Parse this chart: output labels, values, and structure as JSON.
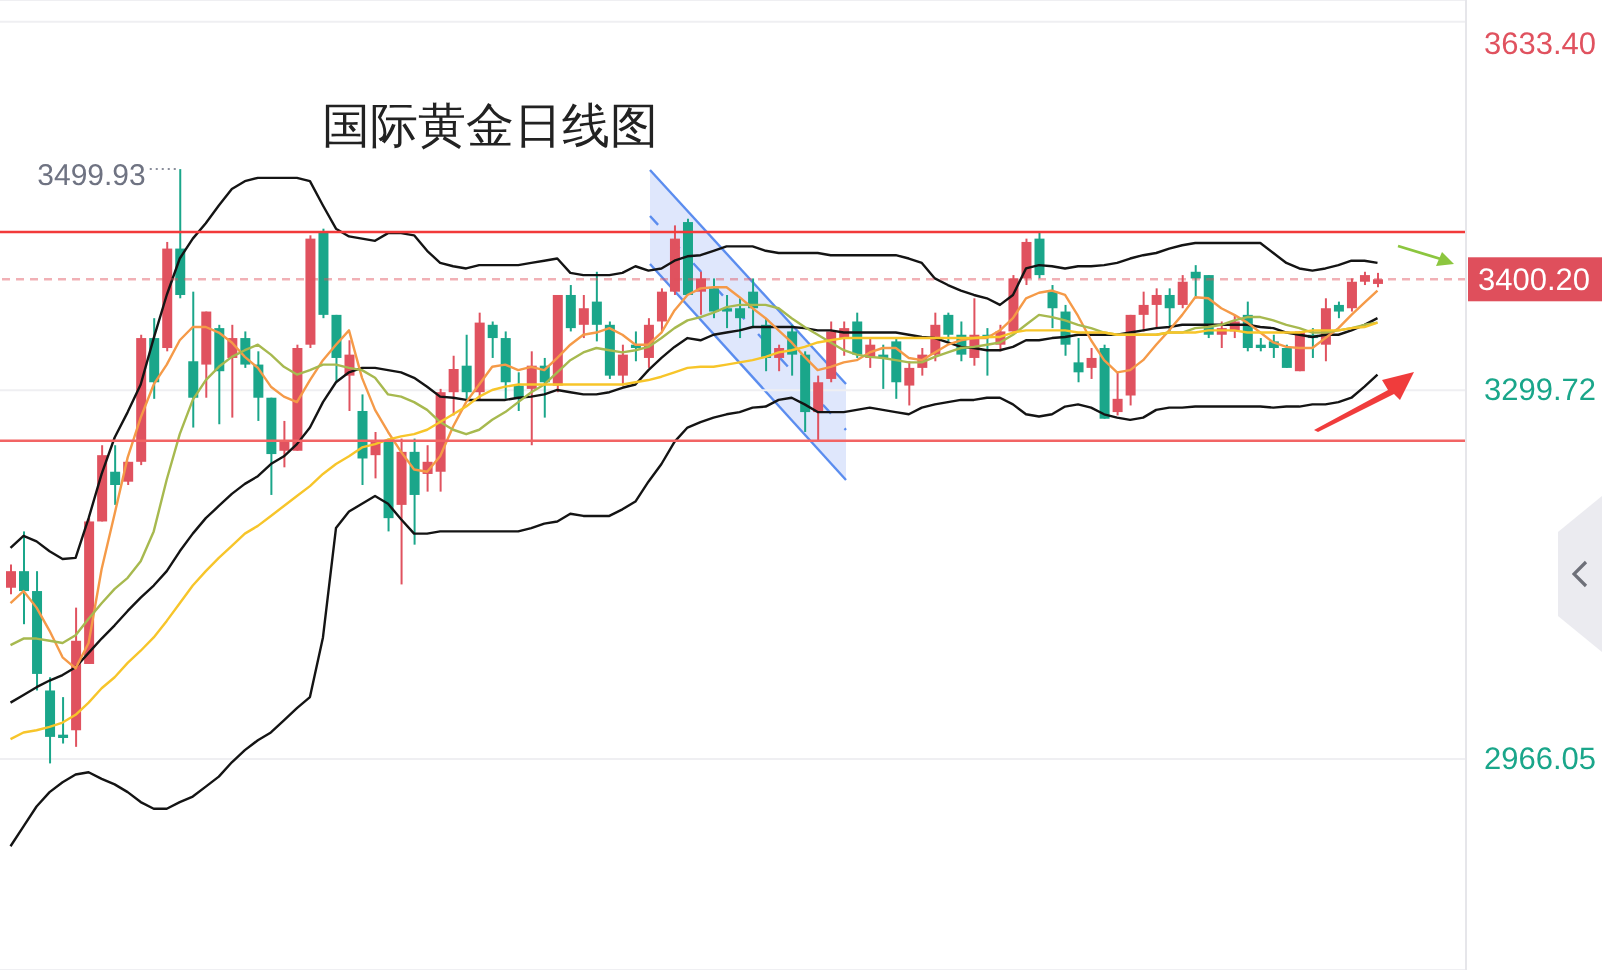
{
  "chart_data": {
    "type": "candlestick",
    "title": "国际黄金日线图",
    "categories": [
      null,
      null,
      null,
      null,
      null,
      null,
      null,
      null,
      null,
      null,
      null,
      null,
      null,
      null,
      null,
      null,
      null,
      null,
      null,
      null,
      null,
      null,
      null,
      null,
      null,
      null,
      null,
      null,
      null,
      null,
      null,
      null,
      null,
      null,
      null,
      null,
      null,
      null,
      null,
      null,
      null,
      null,
      null,
      null,
      null,
      null,
      null,
      null,
      null,
      null,
      null,
      null,
      null,
      null,
      null,
      null,
      null,
      null,
      null,
      null,
      null,
      null,
      null,
      null,
      null,
      null,
      null,
      null,
      null,
      null,
      null,
      null,
      null,
      null,
      null,
      null,
      null,
      null,
      null,
      null,
      null,
      null,
      null,
      null,
      null,
      null,
      null,
      null,
      null,
      null,
      null,
      null,
      null,
      null,
      null,
      null,
      null,
      null,
      null,
      null,
      null,
      null,
      null,
      null,
      null,
      null
    ],
    "ohlc": [
      [
        3121,
        3142,
        3115,
        3136
      ],
      [
        3136,
        3172,
        3088,
        3118
      ],
      [
        3118,
        3136,
        3028,
        3043
      ],
      [
        3028,
        3040,
        2962,
        2986
      ],
      [
        2988,
        3022,
        2980,
        2985
      ],
      [
        2992,
        3103,
        2977,
        3073
      ],
      [
        3052,
        3184,
        3052,
        3181
      ],
      [
        3181,
        3250,
        3181,
        3241
      ],
      [
        3226,
        3250,
        3196,
        3214
      ],
      [
        3217,
        3235,
        3214,
        3235
      ],
      [
        3235,
        3350,
        3232,
        3347
      ],
      [
        3347,
        3365,
        3292,
        3307
      ],
      [
        3338,
        3434,
        3335,
        3428
      ],
      [
        3428,
        3499.93,
        3383,
        3386
      ],
      [
        3326,
        3389,
        3266,
        3293
      ],
      [
        3323,
        3371,
        3293,
        3371
      ],
      [
        3356,
        3359,
        3269,
        3317
      ],
      [
        3329,
        3359,
        3275,
        3347
      ],
      [
        3347,
        3353,
        3320,
        3323
      ],
      [
        3323,
        3335,
        3272,
        3293
      ],
      [
        3293,
        3293,
        3205,
        3242
      ],
      [
        3245,
        3272,
        3230,
        3254
      ],
      [
        3245,
        3341,
        3245,
        3338
      ],
      [
        3341,
        3440,
        3338,
        3437
      ],
      [
        3443,
        3446,
        3365,
        3368
      ],
      [
        3368,
        3368,
        3307,
        3329
      ],
      [
        3313,
        3345,
        3281,
        3332
      ],
      [
        3281,
        3296,
        3214,
        3238
      ],
      [
        3241,
        3262,
        3220,
        3253
      ],
      [
        3253,
        3256,
        3172,
        3184
      ],
      [
        3196,
        3256,
        3124,
        3244
      ],
      [
        3244,
        3256,
        3160,
        3205
      ],
      [
        3224,
        3250,
        3208,
        3235
      ],
      [
        3226,
        3301,
        3208,
        3298
      ],
      [
        3298,
        3331,
        3277,
        3319
      ],
      [
        3322,
        3350,
        3292,
        3298
      ],
      [
        3298,
        3370,
        3292,
        3361
      ],
      [
        3359,
        3362,
        3329,
        3347
      ],
      [
        3347,
        3353,
        3292,
        3307
      ],
      [
        3304,
        3316,
        3281,
        3292
      ],
      [
        3301,
        3335,
        3250,
        3322
      ],
      [
        3322,
        3329,
        3275,
        3307
      ],
      [
        3304,
        3386,
        3298,
        3386
      ],
      [
        3386,
        3395,
        3353,
        3356
      ],
      [
        3359,
        3386,
        3347,
        3374
      ],
      [
        3380,
        3407,
        3344,
        3359
      ],
      [
        3359,
        3362,
        3310,
        3313
      ],
      [
        3313,
        3341,
        3304,
        3332
      ],
      [
        3341,
        3353,
        3326,
        3338
      ],
      [
        3329,
        3365,
        3320,
        3359
      ],
      [
        3362,
        3392,
        3353,
        3389
      ],
      [
        3389,
        3449,
        3386,
        3437
      ],
      [
        3452,
        3455,
        3386,
        3386
      ],
      [
        3389,
        3407,
        3368,
        3401
      ],
      [
        3392,
        3401,
        3365,
        3371
      ],
      [
        3374,
        3386,
        3356,
        3371
      ],
      [
        3374,
        3383,
        3347,
        3365
      ],
      [
        3389,
        3401,
        3356,
        3374
      ],
      [
        3359,
        3365,
        3317,
        3329
      ],
      [
        3329,
        3341,
        3317,
        3338
      ],
      [
        3353,
        3359,
        3313,
        3332
      ],
      [
        3332,
        3335,
        3262,
        3280
      ],
      [
        3280,
        3313,
        3253,
        3307
      ],
      [
        3310,
        3362,
        3307,
        3353
      ],
      [
        3347,
        3362,
        3331,
        3356
      ],
      [
        3362,
        3370,
        3329,
        3332
      ],
      [
        3329,
        3347,
        3320,
        3341
      ],
      [
        3332,
        3341,
        3301,
        3329
      ],
      [
        3344,
        3347,
        3292,
        3307
      ],
      [
        3304,
        3326,
        3286,
        3320
      ],
      [
        3320,
        3338,
        3313,
        3332
      ],
      [
        3332,
        3370,
        3326,
        3359
      ],
      [
        3368,
        3370,
        3344,
        3350
      ],
      [
        3350,
        3362,
        3326,
        3332
      ],
      [
        3329,
        3383,
        3322,
        3350
      ],
      [
        3350,
        3356,
        3313,
        3347
      ],
      [
        3341,
        3359,
        3335,
        3353
      ],
      [
        3353,
        3404,
        3350,
        3401
      ],
      [
        3401,
        3437,
        3395,
        3434
      ],
      [
        3437,
        3443,
        3401,
        3404
      ],
      [
        3389,
        3395,
        3356,
        3374
      ],
      [
        3371,
        3377,
        3331,
        3341
      ],
      [
        3325,
        3347,
        3307,
        3316
      ],
      [
        3320,
        3338,
        3310,
        3329
      ],
      [
        3338,
        3341,
        3274,
        3274
      ],
      [
        3280,
        3316,
        3277,
        3292
      ],
      [
        3295,
        3368,
        3286,
        3368
      ],
      [
        3368,
        3389,
        3353,
        3377
      ],
      [
        3377,
        3392,
        3356,
        3386
      ],
      [
        3386,
        3392,
        3353,
        3374
      ],
      [
        3377,
        3404,
        3374,
        3398
      ],
      [
        3407,
        3413,
        3383,
        3401
      ],
      [
        3404,
        3404,
        3347,
        3350
      ],
      [
        3350,
        3362,
        3338,
        3356
      ],
      [
        3353,
        3368,
        3347,
        3362
      ],
      [
        3368,
        3380,
        3335,
        3338
      ],
      [
        3341,
        3347,
        3335,
        3338
      ],
      [
        3344,
        3350,
        3329,
        3338
      ],
      [
        3338,
        3341,
        3320,
        3320
      ],
      [
        3317,
        3353,
        3317,
        3353
      ],
      [
        3350,
        3356,
        3329,
        3347
      ],
      [
        3341,
        3383,
        3326,
        3374
      ],
      [
        3377,
        3380,
        3365,
        3371
      ],
      [
        3374,
        3401,
        3371,
        3398
      ],
      [
        3398,
        3407,
        3395,
        3404
      ],
      [
        3396,
        3406,
        3393,
        3400.2
      ]
    ],
    "colors": [
      "#e0525f",
      "#1aa68a",
      "#1aa68a",
      "#1aa68a",
      "#1aa68a",
      "#e0525f",
      "#e0525f",
      "#e0525f",
      "#1aa68a",
      "#e0525f",
      "#e0525f",
      "#1aa68a",
      "#e0525f",
      "#1aa68a",
      "#1aa68a",
      "#e0525f",
      "#1aa68a",
      "#e0525f",
      "#1aa68a",
      "#1aa68a",
      "#1aa68a",
      "#e0525f",
      "#e0525f",
      "#e0525f",
      "#1aa68a",
      "#1aa68a",
      "#e0525f",
      "#1aa68a",
      "#e0525f",
      "#1aa68a",
      "#e0525f",
      "#1aa68a",
      "#e0525f",
      "#e0525f",
      "#e0525f",
      "#1aa68a",
      "#e0525f",
      "#1aa68a",
      "#1aa68a",
      "#1aa68a",
      "#e0525f",
      "#1aa68a",
      "#e0525f",
      "#1aa68a",
      "#e0525f",
      "#1aa68a",
      "#1aa68a",
      "#e0525f",
      "#1aa68a",
      "#e0525f",
      "#e0525f",
      "#e0525f",
      "#1aa68a",
      "#e0525f",
      "#1aa68a",
      "#1aa68a",
      "#1aa68a",
      "#1aa68a",
      "#1aa68a",
      "#e0525f",
      "#1aa68a",
      "#1aa68a",
      "#e0525f",
      "#e0525f",
      "#e0525f",
      "#1aa68a",
      "#e0525f",
      "#1aa68a",
      "#1aa68a",
      "#e0525f",
      "#e0525f",
      "#e0525f",
      "#1aa68a",
      "#1aa68a",
      "#e0525f",
      "#1aa68a",
      "#e0525f",
      "#e0525f",
      "#e0525f",
      "#1aa68a",
      "#1aa68a",
      "#1aa68a",
      "#1aa68a",
      "#e0525f",
      "#1aa68a",
      "#e0525f",
      "#e0525f",
      "#e0525f",
      "#e0525f",
      "#1aa68a",
      "#e0525f",
      "#1aa68a",
      "#1aa68a",
      "#e0525f",
      "#e0525f",
      "#1aa68a",
      "#1aa68a",
      "#1aa68a",
      "#1aa68a",
      "#e0525f",
      "#1aa68a",
      "#e0525f",
      "#1aa68a",
      "#e0525f",
      "#e0525f",
      "#e0525f"
    ],
    "series": [
      {
        "type": "line",
        "color": "#141414",
        "values": [
          3157,
          3168,
          3163,
          3154,
          3147,
          3148,
          3184,
          3224,
          3257,
          3280,
          3305,
          3347,
          3386,
          3419,
          3437,
          3451,
          3467,
          3482,
          3489,
          3492,
          3492,
          3492,
          3492,
          3489,
          3467,
          3446,
          3439,
          3437,
          3435,
          3442,
          3442,
          3440,
          3426,
          3415,
          3412,
          3410,
          3413,
          3413,
          3413,
          3413,
          3415,
          3417,
          3419,
          3406,
          3404,
          3404,
          3404,
          3406,
          3412,
          3408,
          3410,
          3417,
          3421,
          3422,
          3426,
          3430,
          3430,
          3430,
          3426,
          3424,
          3424,
          3424,
          3424,
          3422,
          3422,
          3422,
          3422,
          3422,
          3422,
          3419,
          3415,
          3401,
          3395,
          3390,
          3386,
          3383,
          3377,
          3386,
          3410,
          3413,
          3412,
          3410,
          3412,
          3412,
          3413,
          3415,
          3419,
          3422,
          3424,
          3428,
          3431,
          3433,
          3433,
          3433,
          3433,
          3433,
          3433,
          3424,
          3415,
          3410,
          3408,
          3410,
          3413,
          3417,
          3417,
          3415
        ]
      },
      {
        "type": "line",
        "color": "#141414",
        "values": [
          3017,
          3024,
          3031,
          3037,
          3042,
          3049,
          3062,
          3075,
          3087,
          3100,
          3112,
          3123,
          3136,
          3154,
          3170,
          3184,
          3195,
          3206,
          3215,
          3222,
          3233,
          3240,
          3251,
          3266,
          3289,
          3307,
          3316,
          3320,
          3320,
          3318,
          3316,
          3311,
          3303,
          3294,
          3293,
          3291,
          3291,
          3291,
          3291,
          3293,
          3294,
          3296,
          3300,
          3298,
          3296,
          3296,
          3298,
          3302,
          3305,
          3318,
          3329,
          3339,
          3347,
          3345,
          3350,
          3352,
          3354,
          3357,
          3357,
          3357,
          3357,
          3356,
          3354,
          3354,
          3352,
          3352,
          3352,
          3352,
          3352,
          3350,
          3348,
          3347,
          3343,
          3339,
          3338,
          3336,
          3336,
          3339,
          3345,
          3345,
          3347,
          3348,
          3350,
          3350,
          3350,
          3350,
          3352,
          3354,
          3356,
          3357,
          3359,
          3359,
          3359,
          3359,
          3359,
          3359,
          3357,
          3356,
          3352,
          3350,
          3348,
          3350,
          3350,
          3354,
          3359,
          3365
        ]
      },
      {
        "type": "line",
        "color": "#141414",
        "values": [
          2887,
          2905,
          2923,
          2936,
          2945,
          2952,
          2954,
          2948,
          2943,
          2936,
          2927,
          2921,
          2921,
          2927,
          2932,
          2941,
          2950,
          2963,
          2974,
          2983,
          2990,
          3001,
          3012,
          3022,
          3076,
          3175,
          3190,
          3197,
          3204,
          3197,
          3183,
          3170,
          3170,
          3172,
          3172,
          3172,
          3172,
          3172,
          3172,
          3172,
          3175,
          3179,
          3181,
          3188,
          3186,
          3186,
          3186,
          3192,
          3199,
          3217,
          3233,
          3253,
          3266,
          3271,
          3275,
          3278,
          3280,
          3284,
          3285,
          3291,
          3293,
          3287,
          3280,
          3280,
          3280,
          3282,
          3284,
          3282,
          3280,
          3278,
          3284,
          3287,
          3289,
          3291,
          3291,
          3293,
          3293,
          3287,
          3278,
          3276,
          3278,
          3285,
          3287,
          3284,
          3278,
          3275,
          3273,
          3275,
          3282,
          3284,
          3284,
          3285,
          3285,
          3285,
          3285,
          3285,
          3285,
          3284,
          3285,
          3285,
          3287,
          3287,
          3289,
          3293,
          3303,
          3314
        ]
      },
      {
        "type": "line",
        "color": "#f59a48",
        "values": [
          3107,
          3118,
          3103,
          3082,
          3058,
          3048,
          3071,
          3138,
          3188,
          3239,
          3275,
          3305,
          3323,
          3345,
          3357,
          3357,
          3352,
          3343,
          3330,
          3320,
          3303,
          3294,
          3289,
          3309,
          3327,
          3341,
          3354,
          3311,
          3282,
          3262,
          3244,
          3228,
          3226,
          3240,
          3267,
          3289,
          3305,
          3321,
          3323,
          3318,
          3321,
          3318,
          3329,
          3341,
          3350,
          3352,
          3356,
          3350,
          3341,
          3341,
          3352,
          3372,
          3386,
          3392,
          3393,
          3393,
          3384,
          3374,
          3365,
          3354,
          3343,
          3330,
          3318,
          3321,
          3325,
          3327,
          3334,
          3338,
          3338,
          3329,
          3327,
          3334,
          3341,
          3345,
          3347,
          3347,
          3354,
          3365,
          3383,
          3388,
          3390,
          3386,
          3367,
          3345,
          3327,
          3316,
          3318,
          3327,
          3341,
          3354,
          3368,
          3384,
          3383,
          3374,
          3368,
          3361,
          3352,
          3343,
          3339,
          3338,
          3338,
          3347,
          3356,
          3368,
          3379,
          3390
        ]
      },
      {
        "type": "line",
        "color": "#a7b94f",
        "values": [
          3069,
          3075,
          3075,
          3073,
          3071,
          3078,
          3093,
          3107,
          3120,
          3130,
          3145,
          3172,
          3219,
          3260,
          3291,
          3309,
          3321,
          3330,
          3336,
          3341,
          3332,
          3321,
          3314,
          3318,
          3323,
          3323,
          3320,
          3318,
          3311,
          3296,
          3294,
          3289,
          3282,
          3271,
          3264,
          3260,
          3264,
          3273,
          3280,
          3289,
          3298,
          3305,
          3316,
          3327,
          3334,
          3338,
          3336,
          3334,
          3336,
          3339,
          3347,
          3356,
          3363,
          3366,
          3370,
          3375,
          3377,
          3377,
          3377,
          3374,
          3365,
          3357,
          3350,
          3343,
          3336,
          3332,
          3330,
          3329,
          3327,
          3325,
          3325,
          3330,
          3334,
          3338,
          3339,
          3341,
          3343,
          3350,
          3359,
          3368,
          3366,
          3363,
          3359,
          3356,
          3352,
          3350,
          3350,
          3350,
          3350,
          3352,
          3352,
          3356,
          3357,
          3359,
          3363,
          3366,
          3366,
          3363,
          3359,
          3356,
          3352,
          3352,
          3354,
          3356,
          3359,
          3361
        ]
      },
      {
        "type": "line",
        "color": "#f7c52a",
        "values": [
          2984,
          2990,
          2992,
          2995,
          2999,
          3006,
          3017,
          3030,
          3040,
          3053,
          3064,
          3076,
          3091,
          3107,
          3123,
          3136,
          3148,
          3159,
          3170,
          3177,
          3186,
          3195,
          3204,
          3213,
          3224,
          3233,
          3240,
          3248,
          3251,
          3255,
          3258,
          3260,
          3264,
          3271,
          3278,
          3285,
          3294,
          3300,
          3303,
          3305,
          3305,
          3305,
          3305,
          3305,
          3305,
          3305,
          3305,
          3305,
          3307,
          3309,
          3312,
          3316,
          3320,
          3321,
          3321,
          3323,
          3325,
          3327,
          3330,
          3334,
          3336,
          3339,
          3343,
          3345,
          3347,
          3347,
          3347,
          3347,
          3347,
          3347,
          3347,
          3347,
          3347,
          3347,
          3347,
          3348,
          3348,
          3352,
          3354,
          3354,
          3354,
          3354,
          3352,
          3352,
          3352,
          3350,
          3350,
          3350,
          3350,
          3352,
          3352,
          3352,
          3354,
          3354,
          3354,
          3352,
          3352,
          3352,
          3352,
          3352,
          3354,
          3354,
          3354,
          3356,
          3357,
          3361
        ]
      }
    ],
    "ylim": [
      2775,
      3653
    ],
    "yticks": [
      {
        "value": 3633.4,
        "label": "3633.40"
      },
      {
        "value": 3299.72,
        "label": "3299.72"
      },
      {
        "value": 2966.05,
        "label": "2966.05"
      }
    ],
    "ref_lines": [
      {
        "axis": "y",
        "value": 3443,
        "color": "#f23a3a"
      },
      {
        "axis": "y",
        "value": 3254,
        "color": "#f26464"
      },
      {
        "axis": "y",
        "value": 3400.2,
        "label": "3400.20",
        "color": "#df4f5c",
        "line_style": "dashed"
      }
    ],
    "annotations": [
      "3499.93"
    ],
    "grid": "y",
    "tick_labels": "y"
  }
}
